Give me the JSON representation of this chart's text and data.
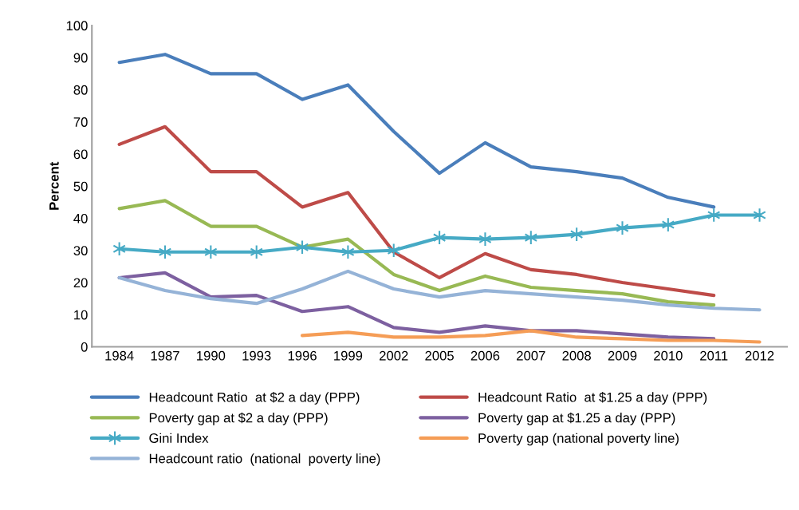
{
  "chart_data": {
    "type": "line",
    "ylabel": "Percent",
    "categories": [
      "1984",
      "1987",
      "1990",
      "1993",
      "1996",
      "1999",
      "2002",
      "2005",
      "2006",
      "2007",
      "2008",
      "2009",
      "2010",
      "2011",
      "2012"
    ],
    "ylim": [
      0,
      100
    ],
    "yticks": [
      0,
      10,
      20,
      30,
      40,
      50,
      60,
      70,
      80,
      90,
      100
    ],
    "grid": false,
    "legend": "bottom",
    "line_style": "solid",
    "series": [
      {
        "name": "Headcount Ratio  at $2 a day (PPP)",
        "color": "#4a7ebb",
        "values": [
          88.5,
          91,
          85,
          85,
          77,
          81.5,
          67,
          54,
          63.5,
          56,
          54.5,
          52.5,
          46.5,
          43.5,
          null
        ]
      },
      {
        "name": "Headcount Ratio  at $1.25 a day (PPP)",
        "color": "#be4b48",
        "values": [
          63,
          68.5,
          54.5,
          54.5,
          43.5,
          48,
          29.5,
          21.5,
          29,
          24,
          22.5,
          20,
          18,
          16,
          null
        ]
      },
      {
        "name": "Poverty gap at $2 a day (PPP)",
        "color": "#98b954",
        "values": [
          43,
          45.5,
          37.5,
          37.5,
          31,
          33.5,
          22.5,
          17.5,
          22,
          18.5,
          17.5,
          16.5,
          14,
          13,
          null
        ]
      },
      {
        "name": "Poverty gap at $1.25 a day (PPP)",
        "color": "#7d60a0",
        "values": [
          21.5,
          23,
          15.5,
          16,
          11,
          12.5,
          6,
          4.5,
          6.5,
          5,
          5,
          4,
          3,
          2.5,
          null
        ]
      },
      {
        "name": "Gini Index",
        "color": "#46aac5",
        "marker": "cross",
        "values": [
          30.5,
          29.5,
          29.5,
          29.5,
          31,
          29.5,
          30,
          34,
          33.5,
          34,
          35,
          37,
          38,
          41,
          41
        ]
      },
      {
        "name": "Poverty gap (national poverty line)",
        "color": "#f59d56",
        "values": [
          null,
          null,
          null,
          null,
          3.5,
          4.5,
          3,
          3,
          3.5,
          5,
          3,
          2.5,
          2,
          2,
          1.5
        ]
      },
      {
        "name": "Headcount ratio  (national  poverty line)",
        "color": "#95b3d7",
        "values": [
          21.5,
          17.5,
          15,
          13.5,
          18,
          23.5,
          18,
          15.5,
          17.5,
          16.5,
          15.5,
          14.5,
          13,
          12,
          11.5
        ]
      }
    ]
  }
}
